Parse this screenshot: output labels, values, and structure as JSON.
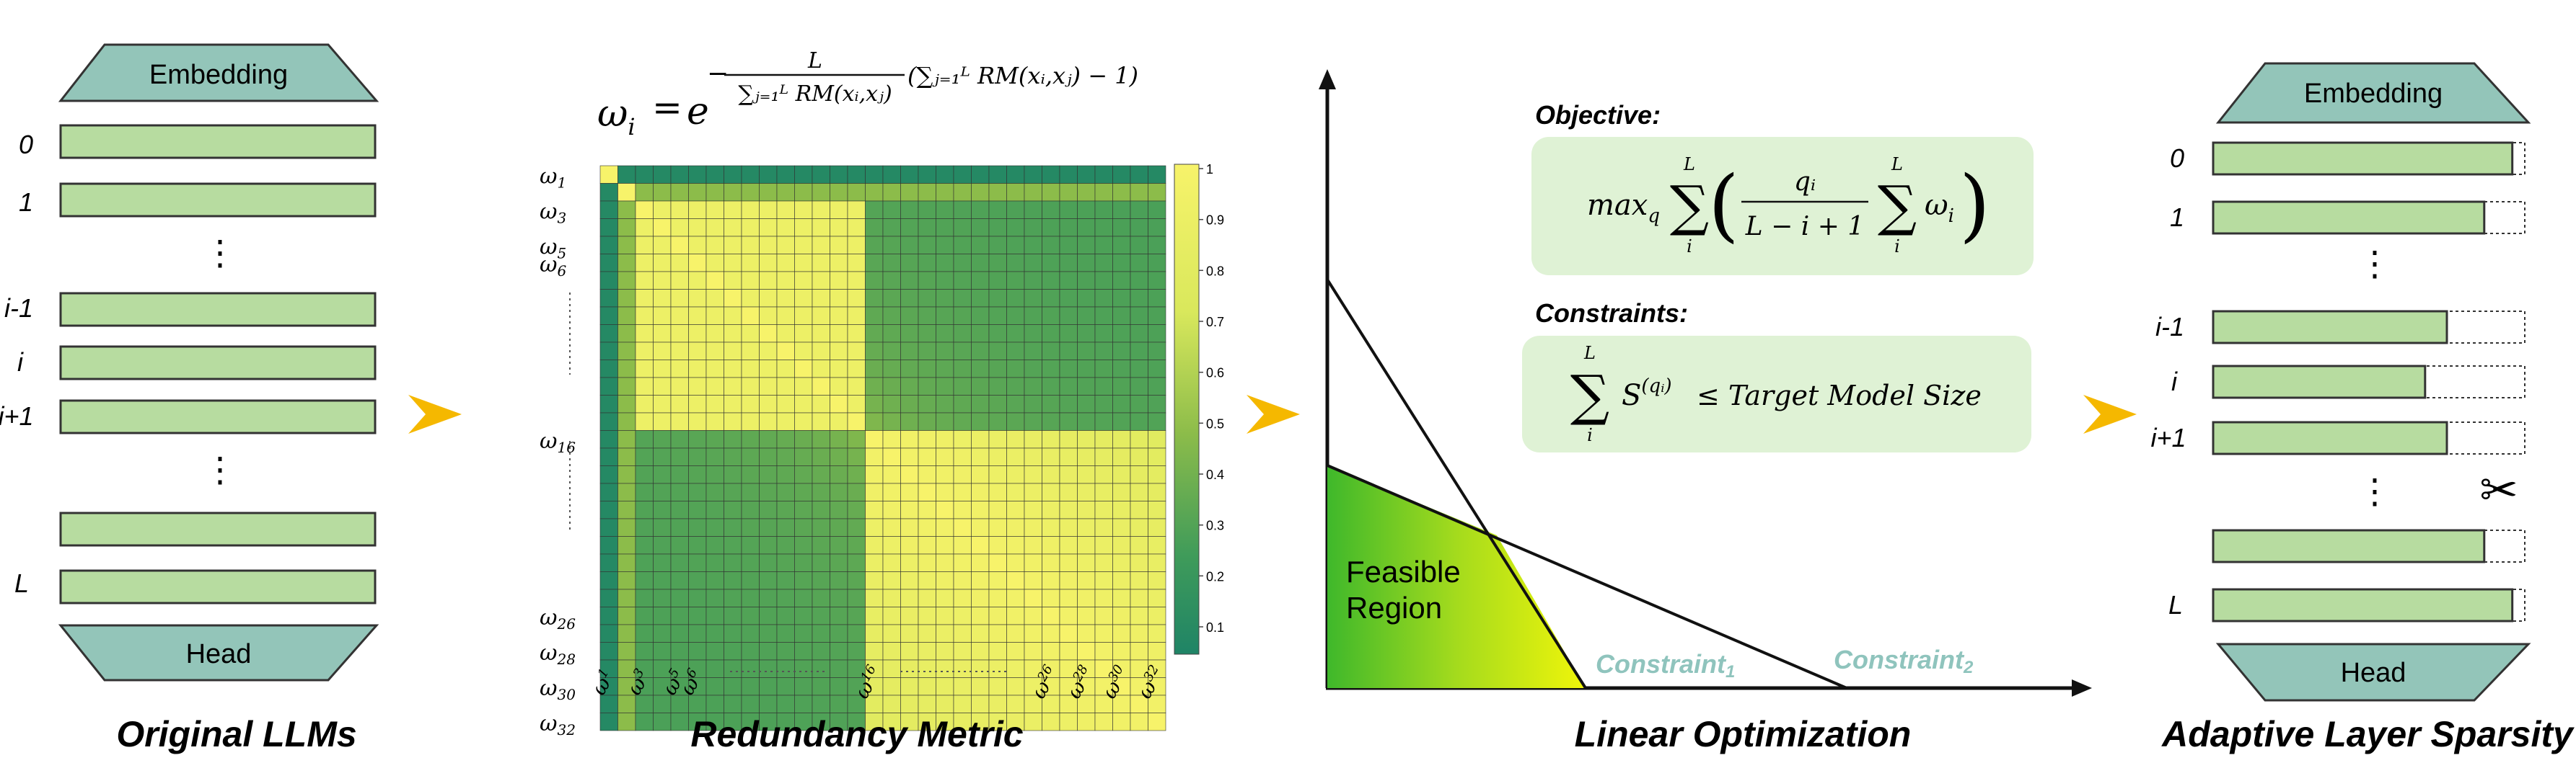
{
  "colors": {
    "layer_fill": "#b7dca0",
    "trap_fill": "#93c5b9",
    "box_fill": "#dff2d5",
    "arrow": "#f5b800",
    "constraint_label": "#8fc4bd",
    "heat_low": "#1f8466",
    "heat_mid": "#8cbc4a",
    "heat_high": "#f7f36a"
  },
  "panel1": {
    "embedding": "Embedding",
    "head": "Head",
    "layers": [
      {
        "label": "0"
      },
      {
        "label": "1"
      },
      {
        "label": "i-1"
      },
      {
        "label": "i"
      },
      {
        "label": "i+1"
      },
      {
        "label": "L"
      }
    ],
    "dots": "⋮",
    "caption": "Original LLMs"
  },
  "panel2": {
    "formula": {
      "lhs": "ω",
      "lhs_sub": "i",
      "equals": "=",
      "base": "e",
      "exp_sign": "−",
      "frac_num": "L",
      "frac_den": "∑ⱼ₌₁ᴸ RM(xᵢ,xⱼ)",
      "paren": "(∑ⱼ₌₁ᴸ RM(xᵢ,xⱼ) − 1)"
    },
    "row_labels": [
      {
        "w": "ω",
        "sub": "1"
      },
      {
        "w": "ω",
        "sub": "3"
      },
      {
        "w": "ω",
        "sub": "5"
      },
      {
        "w": "ω",
        "sub": "6"
      },
      {
        "w": "ω",
        "sub": "16"
      },
      {
        "w": "ω",
        "sub": "26"
      },
      {
        "w": "ω",
        "sub": "28"
      },
      {
        "w": "ω",
        "sub": "30"
      },
      {
        "w": "ω",
        "sub": "32"
      }
    ],
    "col_labels": [
      {
        "w": "ω",
        "sub": "1"
      },
      {
        "w": "ω",
        "sub": "3"
      },
      {
        "w": "ω",
        "sub": "5"
      },
      {
        "w": "ω",
        "sub": "6"
      },
      {
        "w": "ω",
        "sub": "16"
      },
      {
        "w": "ω",
        "sub": "26"
      },
      {
        "w": "ω",
        "sub": "28"
      },
      {
        "w": "ω",
        "sub": "30"
      },
      {
        "w": "ω",
        "sub": "32"
      }
    ],
    "colorbar_ticks": [
      "1",
      "0.9",
      "0.8",
      "0.7",
      "0.6",
      "0.5",
      "0.4",
      "0.3",
      "0.2",
      "0.1"
    ],
    "caption": "Redundancy Metric"
  },
  "panel3": {
    "objective_title": "Objective:",
    "objective_formula": {
      "prefix": "max",
      "prefix_sub": "q",
      "sum1_top": "L",
      "sum1_bottom": "i",
      "frac_num": "qᵢ",
      "frac_den": "L − i + 1",
      "sum2_top": "L",
      "sum2_bottom": "i",
      "term": "ω",
      "term_sub": "i"
    },
    "constraints_title": "Constraints:",
    "constraints_formula": {
      "sum_top": "L",
      "sum_bottom": "i",
      "term": "S",
      "term_sup": "(qᵢ)",
      "rhs": "≤ Target Model Size"
    },
    "feasible_line1": "Feasible",
    "feasible_line2": "Region",
    "constraint1": "Constraint",
    "constraint1_sub": "1",
    "constraint2": "Constraint",
    "constraint2_sub": "2",
    "caption": "Linear Optimization"
  },
  "panel4": {
    "embedding": "Embedding",
    "head": "Head",
    "layers": [
      {
        "label": "0",
        "fill": 0.96
      },
      {
        "label": "1",
        "fill": 0.87
      },
      {
        "label": "i-1",
        "fill": 0.75
      },
      {
        "label": "i",
        "fill": 0.68
      },
      {
        "label": "i+1",
        "fill": 0.75
      },
      {
        "label": "",
        "fill": 0.87
      },
      {
        "label": "L",
        "fill": 0.96
      }
    ],
    "dots": "⋮",
    "scissors_icon": "✂",
    "caption": "Adaptive Layer Sparsity"
  }
}
